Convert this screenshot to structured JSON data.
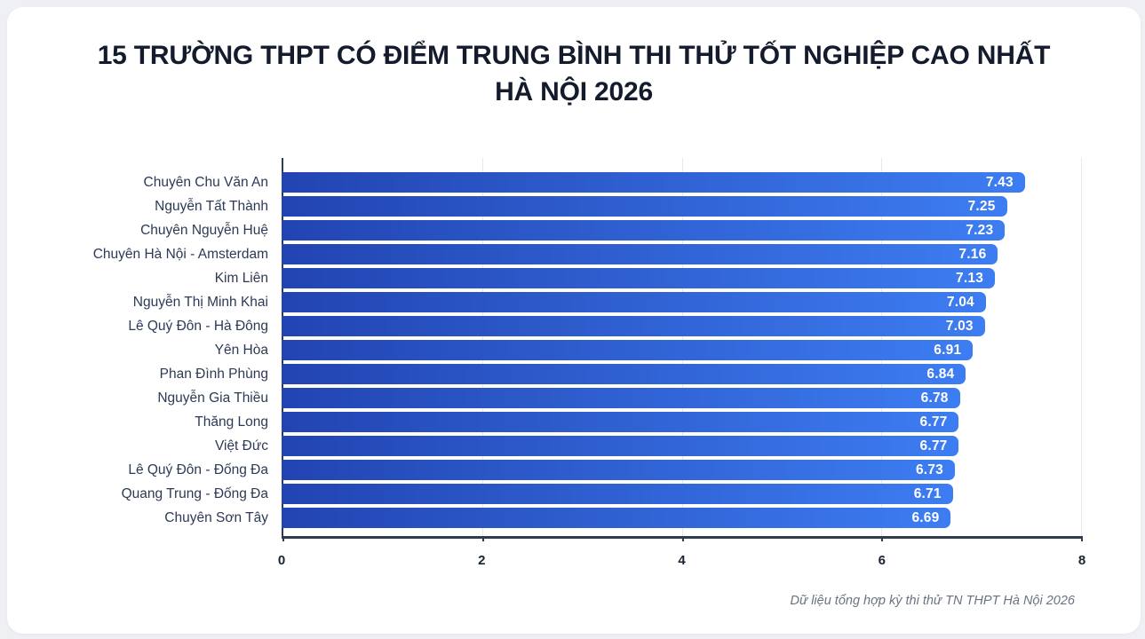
{
  "page": {
    "background_color": "#eef0f3",
    "card_color": "#ffffff"
  },
  "header": {
    "title_line1": "15 TRƯỜNG THPT CÓ ĐIỂM TRUNG BÌNH THI THỬ TỐT NGHIỆP CAO NHẤT",
    "title_line2": "HÀ NỘI 2026"
  },
  "chart_data": {
    "type": "bar",
    "orientation": "horizontal",
    "title": "15 TRƯỜNG THPT CÓ ĐIỂM TRUNG BÌNH THI THỬ TỐT NGHIỆP CAO NHẤT HÀ NỘI 2026",
    "categories": [
      "Chuyên Chu Văn An",
      "Nguyễn Tất Thành",
      "Chuyên Nguyễn Huệ",
      "Chuyên Hà Nội - Amsterdam",
      "Kim Liên",
      "Nguyễn Thị Minh Khai",
      "Lê Quý Đôn - Hà Đông",
      "Yên Hòa",
      "Phan Đình Phùng",
      "Nguyễn Gia Thiều",
      "Thăng Long",
      "Việt Đức",
      "Lê Quý Đôn - Đống Đa",
      "Quang Trung - Đống Đa",
      "Chuyên Sơn Tây"
    ],
    "values": [
      7.43,
      7.25,
      7.23,
      7.16,
      7.13,
      7.04,
      7.03,
      6.91,
      6.84,
      6.78,
      6.77,
      6.77,
      6.73,
      6.71,
      6.69
    ],
    "xlabel": "",
    "ylabel": "",
    "xlim": [
      0,
      8
    ],
    "xticks": [
      0,
      2,
      4,
      6,
      8
    ],
    "grid": "vertical gridlines at x ticks",
    "legend": "none",
    "value_labels": "inside bar end, white bold, two decimals",
    "colors": {
      "bar_gradient_start": "#2244b2",
      "bar_gradient_end": "#3d7df2",
      "axis_line": "#2f3b4f",
      "gridline": "#e7e9ee",
      "title_text": "#131b2c",
      "category_label_text": "#2d3a55",
      "tick_label_text": "#1a2333",
      "value_label_text": "#ffffff"
    }
  },
  "footer": {
    "source_note": "Dữ liệu tổng hợp kỳ thi thử TN THPT Hà Nội 2026"
  }
}
